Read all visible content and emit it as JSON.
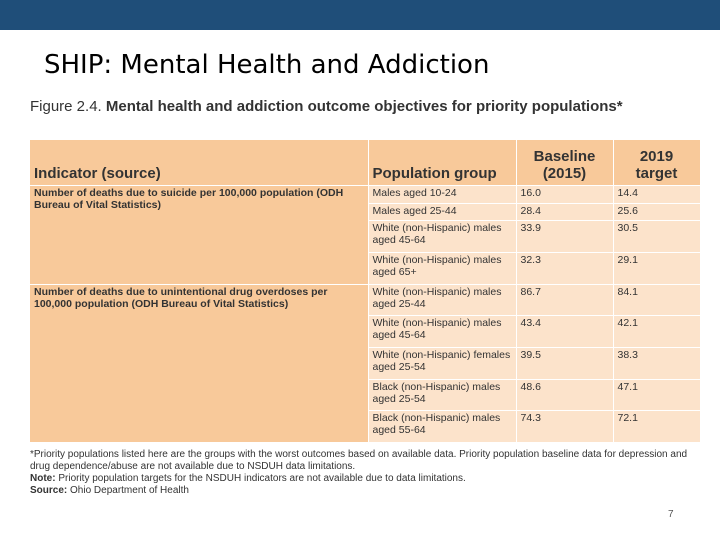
{
  "slide": {
    "title": "SHIP: Mental Health and Addiction",
    "page_number": "7"
  },
  "figure": {
    "number": "Figure 2.4.",
    "title": "Mental health and addiction outcome objectives for priority populations*"
  },
  "table": {
    "headers": {
      "indicator": "Indicator (source)",
      "population": "Population group",
      "baseline": "Baseline (2015)",
      "target": "2019 target"
    },
    "indicators": {
      "suicide": "Number of deaths due to suicide per 100,000 population (ODH Bureau of Vital Statistics)",
      "overdose": "Number of deaths due to unintentional drug overdoses per 100,000 population (ODH Bureau of Vital Statistics)"
    },
    "rows": [
      {
        "population": "Males aged 10-24",
        "baseline": "16.0",
        "target": "14.4"
      },
      {
        "population": "Males aged 25-44",
        "baseline": "28.4",
        "target": "25.6"
      },
      {
        "population": "White (non-Hispanic) males aged 45-64",
        "baseline": "33.9",
        "target": "30.5"
      },
      {
        "population": "White (non-Hispanic) males aged 65+",
        "baseline": "32.3",
        "target": "29.1"
      },
      {
        "population": "White (non-Hispanic) males aged 25-44",
        "baseline": "86.7",
        "target": "84.1"
      },
      {
        "population": "White (non-Hispanic) males aged 45-64",
        "baseline": "43.4",
        "target": "42.1"
      },
      {
        "population": "White (non-Hispanic) females aged 25-54",
        "baseline": "39.5",
        "target": "38.3"
      },
      {
        "population": "Black (non-Hispanic) males aged 25-54",
        "baseline": "48.6",
        "target": "47.1"
      },
      {
        "population": "Black (non-Hispanic) males aged 55-64",
        "baseline": "74.3",
        "target": "72.1"
      }
    ]
  },
  "notes": {
    "asterisk": "*Priority populations listed here are the groups with the worst outcomes based on available data. Priority population baseline data for depression and drug dependence/abuse are not available due to NSDUH data limitations.",
    "note_label": "Note:",
    "note_text": "Priority population targets for the NSDUH indicators are not available due to data limitations.",
    "source_label": "Source:",
    "source_text": "Ohio Department of Health"
  }
}
